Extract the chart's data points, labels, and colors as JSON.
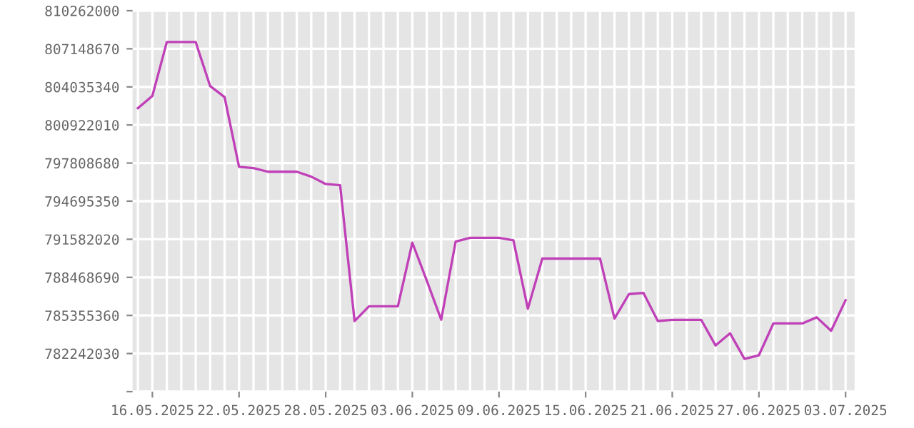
{
  "chart_data": {
    "type": "line",
    "x": [
      "2025-05-15",
      "2025-05-16",
      "2025-05-17",
      "2025-05-18",
      "2025-05-19",
      "2025-05-20",
      "2025-05-21",
      "2025-05-22",
      "2025-05-23",
      "2025-05-24",
      "2025-05-25",
      "2025-05-26",
      "2025-05-27",
      "2025-05-28",
      "2025-05-29",
      "2025-05-30",
      "2025-05-31",
      "2025-06-01",
      "2025-06-02",
      "2025-06-03",
      "2025-06-04",
      "2025-06-05",
      "2025-06-06",
      "2025-06-07",
      "2025-06-08",
      "2025-06-09",
      "2025-06-10",
      "2025-06-11",
      "2025-06-12",
      "2025-06-13",
      "2025-06-14",
      "2025-06-15",
      "2025-06-16",
      "2025-06-17",
      "2025-06-18",
      "2025-06-19",
      "2025-06-20",
      "2025-06-21",
      "2025-06-22",
      "2025-06-23",
      "2025-06-24",
      "2025-06-25",
      "2025-06-26",
      "2025-06-27",
      "2025-06-28",
      "2025-06-29",
      "2025-06-30",
      "2025-07-01",
      "2025-07-02",
      "2025-07-03"
    ],
    "series": [
      {
        "color": "#c040b8",
        "values": [
          802300000,
          803300000,
          807700000,
          807700000,
          807700000,
          804100000,
          803200000,
          797500000,
          797400000,
          797100000,
          797100000,
          797100000,
          796700000,
          796100000,
          796000000,
          784900000,
          786100000,
          786100000,
          786100000,
          791300000,
          788200000,
          785000000,
          791400000,
          791700000,
          791700000,
          791700000,
          791500000,
          785900000,
          790000000,
          790000000,
          790000000,
          790000000,
          790000000,
          785100000,
          787100000,
          787200000,
          784900000,
          785000000,
          785000000,
          785000000,
          782900000,
          783900000,
          781800000,
          782100000,
          784700000,
          784700000,
          784700000,
          785200000,
          784100000,
          786600000
        ]
      }
    ],
    "xlim": [
      "2025-05-14T15:00",
      "2025-07-03T15:00"
    ],
    "ylim": [
      779128700,
      810262000
    ],
    "yticks": [
      {
        "value": 779128700,
        "label": null
      },
      782242030,
      785355360,
      788468690,
      791582020,
      794695350,
      797808680,
      800922010,
      804035340,
      807148670,
      810262000
    ],
    "xticks": [
      {
        "value": "2025-05-15",
        "label": null
      },
      {
        "value": "2025-05-16",
        "label": "16.05.2025"
      },
      {
        "value": "2025-05-17",
        "label": null
      },
      {
        "value": "2025-05-18",
        "label": null
      },
      {
        "value": "2025-05-19",
        "label": null
      },
      {
        "value": "2025-05-20",
        "label": null
      },
      {
        "value": "2025-05-21",
        "label": null
      },
      {
        "value": "2025-05-22",
        "label": "22.05.2025"
      },
      {
        "value": "2025-05-23",
        "label": null
      },
      {
        "value": "2025-05-24",
        "label": null
      },
      {
        "value": "2025-05-25",
        "label": null
      },
      {
        "value": "2025-05-26",
        "label": null
      },
      {
        "value": "2025-05-27",
        "label": null
      },
      {
        "value": "2025-05-28",
        "label": "28.05.2025"
      },
      {
        "value": "2025-05-29",
        "label": null
      },
      {
        "value": "2025-05-30",
        "label": null
      },
      {
        "value": "2025-05-31",
        "label": null
      },
      {
        "value": "2025-06-01",
        "label": null
      },
      {
        "value": "2025-06-02",
        "label": null
      },
      {
        "value": "2025-06-03",
        "label": "03.06.2025"
      },
      {
        "value": "2025-06-04",
        "label": null
      },
      {
        "value": "2025-06-05",
        "label": null
      },
      {
        "value": "2025-06-06",
        "label": null
      },
      {
        "value": "2025-06-07",
        "label": null
      },
      {
        "value": "2025-06-08",
        "label": null
      },
      {
        "value": "2025-06-09",
        "label": "09.06.2025"
      },
      {
        "value": "2025-06-10",
        "label": null
      },
      {
        "value": "2025-06-11",
        "label": null
      },
      {
        "value": "2025-06-12",
        "label": null
      },
      {
        "value": "2025-06-13",
        "label": null
      },
      {
        "value": "2025-06-14",
        "label": null
      },
      {
        "value": "2025-06-15",
        "label": "15.06.2025"
      },
      {
        "value": "2025-06-16",
        "label": null
      },
      {
        "value": "2025-06-17",
        "label": null
      },
      {
        "value": "2025-06-18",
        "label": null
      },
      {
        "value": "2025-06-19",
        "label": null
      },
      {
        "value": "2025-06-20",
        "label": null
      },
      {
        "value": "2025-06-21",
        "label": "21.06.2025"
      },
      {
        "value": "2025-06-22",
        "label": null
      },
      {
        "value": "2025-06-23",
        "label": null
      },
      {
        "value": "2025-06-24",
        "label": null
      },
      {
        "value": "2025-06-25",
        "label": null
      },
      {
        "value": "2025-06-26",
        "label": null
      },
      {
        "value": "2025-06-27",
        "label": "27.06.2025"
      },
      {
        "value": "2025-06-28",
        "label": null
      },
      {
        "value": "2025-06-29",
        "label": null
      },
      {
        "value": "2025-06-30",
        "label": null
      },
      {
        "value": "2025-07-01",
        "label": null
      },
      {
        "value": "2025-07-02",
        "label": null
      },
      {
        "value": "2025-07-03",
        "label": "03.07.2025"
      }
    ],
    "grid": true,
    "marker": "none",
    "line_style": "solid"
  }
}
